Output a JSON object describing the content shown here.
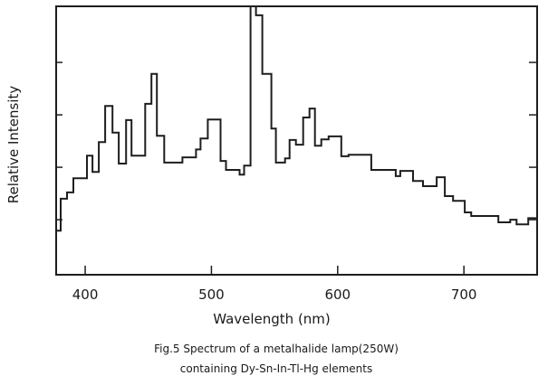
{
  "chart_data": {
    "type": "line",
    "style": "step",
    "title": "",
    "xlabel": "Wavelength (nm)",
    "ylabel": "Relative Intensity",
    "xlim": [
      377,
      758
    ],
    "ylim": [
      -0.05,
      5.07
    ],
    "xticks": [
      400,
      500,
      600,
      700
    ],
    "xtick_labels": [
      "400",
      "500",
      "600",
      "700"
    ],
    "yticks": [
      1,
      2,
      3,
      4
    ],
    "grid": false,
    "legend": "none",
    "caption": [
      "Fig.5 Spectrum of a metalhalide lamp(250W)",
      "containing Dy-Sn-In-Tl-Hg elements"
    ],
    "series": [
      {
        "name": "spectrum",
        "color": "#1e1e1e",
        "x_end": 758,
        "x": [
          376.3,
          380.6,
          385.6,
          390.6,
          401.4,
          405.8,
          410.8,
          415.8,
          421.6,
          426.6,
          432.4,
          436.7,
          447.5,
          452.5,
          456.8,
          462.6,
          477,
          487.8,
          491.4,
          497.1,
          507.2,
          511.5,
          522.3,
          525.9,
          531,
          535.3,
          540.3,
          547.5,
          551.1,
          558.3,
          561.9,
          566.9,
          572.7,
          577.7,
          582,
          587,
          592.8,
          602.9,
          608.6,
          626.6,
          646,
          649.6,
          659.7,
          667.6,
          678.4,
          684.9,
          691.4,
          700.7,
          705.8,
          727.3,
          736.7,
          741.7,
          751
        ],
        "y": [
          0.79,
          1.4,
          1.52,
          1.79,
          2.22,
          1.91,
          2.48,
          3.17,
          2.66,
          2.07,
          2.9,
          2.22,
          3.21,
          3.78,
          2.6,
          2.09,
          2.19,
          2.34,
          2.55,
          2.91,
          2.12,
          1.95,
          1.86,
          2.03,
          5.5,
          4.9,
          3.78,
          2.74,
          2.09,
          2.17,
          2.52,
          2.43,
          2.95,
          3.12,
          2.41,
          2.53,
          2.59,
          2.21,
          2.24,
          1.95,
          1.83,
          1.93,
          1.74,
          1.64,
          1.81,
          1.45,
          1.36,
          1.14,
          1.07,
          0.95,
          1.0,
          0.91,
          1.03
        ]
      }
    ]
  }
}
